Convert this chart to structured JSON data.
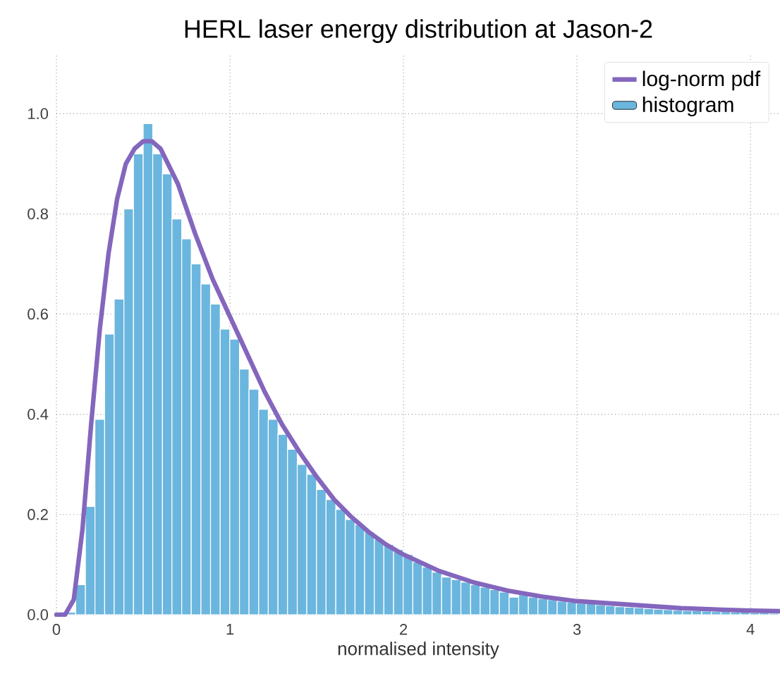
{
  "chart_data": {
    "type": "histogram",
    "title": "HERL laser energy distribution at Jason-2",
    "xlabel": "normalised intensity",
    "xlim": [
      0,
      4.17
    ],
    "ylim": [
      0,
      1.12
    ],
    "xticks": [
      0,
      1,
      2,
      3,
      4
    ],
    "yticks": [
      {
        "value": 0,
        "label": "0.0"
      },
      {
        "value": 0.2,
        "label": "0.2"
      },
      {
        "value": 0.4,
        "label": "0.4"
      },
      {
        "value": 0.6,
        "label": "0.6"
      },
      {
        "value": 0.8,
        "label": "0.8"
      },
      {
        "value": 1.0,
        "label": "1.0"
      }
    ],
    "grid": true,
    "legend": "top right",
    "series": [
      {
        "type": "line",
        "name": "log-norm pdf",
        "color": "#8466bd",
        "x": [
          0,
          0.05,
          0.1,
          0.15,
          0.2,
          0.25,
          0.3,
          0.35,
          0.4,
          0.45,
          0.5,
          0.55,
          0.6,
          0.7,
          0.8,
          0.9,
          1.0,
          1.1,
          1.2,
          1.3,
          1.4,
          1.5,
          1.6,
          1.7,
          1.8,
          1.9,
          2.0,
          2.2,
          2.4,
          2.6,
          2.8,
          3.0,
          3.3,
          3.6,
          4.0,
          4.17
        ],
        "values": [
          0,
          0,
          0.03,
          0.17,
          0.38,
          0.57,
          0.72,
          0.83,
          0.9,
          0.93,
          0.945,
          0.945,
          0.93,
          0.86,
          0.76,
          0.67,
          0.595,
          0.52,
          0.445,
          0.38,
          0.325,
          0.275,
          0.23,
          0.195,
          0.165,
          0.14,
          0.12,
          0.088,
          0.065,
          0.048,
          0.036,
          0.027,
          0.02,
          0.013,
          0.008,
          0.007
        ]
      },
      {
        "name": "histogram",
        "color": "#6bb6de",
        "bins": [
          0,
          0.056,
          0.111,
          0.167,
          0.222,
          0.278,
          0.333,
          0.389,
          0.444,
          0.5,
          0.555,
          0.611,
          0.666,
          0.722,
          0.777,
          0.833,
          0.888,
          0.944,
          0.999,
          1.055,
          1.11,
          1.166,
          1.221,
          1.277,
          1.332,
          1.388,
          1.443,
          1.499,
          1.554,
          1.61,
          1.665,
          1.721,
          1.776,
          1.832,
          1.887,
          1.943,
          1.998,
          2.054,
          2.109,
          2.165,
          2.22,
          2.276,
          2.331,
          2.387,
          2.442,
          2.498,
          2.553,
          2.609,
          2.664,
          2.72,
          2.775,
          2.831,
          2.886,
          2.942,
          2.997,
          3.053,
          3.108,
          3.164,
          3.219,
          3.275,
          3.33,
          3.386,
          3.441,
          3.497,
          3.552,
          3.608,
          3.663,
          3.719,
          3.774,
          3.83,
          3.885,
          3.941,
          3.996,
          4.052,
          4.107,
          4.163
        ],
        "values": [
          0,
          0.005,
          0.06,
          0.216,
          0.39,
          0.56,
          0.63,
          0.81,
          0.92,
          0.98,
          0.92,
          0.88,
          0.79,
          0.75,
          0.7,
          0.66,
          0.62,
          0.57,
          0.55,
          0.49,
          0.45,
          0.41,
          0.39,
          0.36,
          0.33,
          0.3,
          0.28,
          0.25,
          0.23,
          0.21,
          0.19,
          0.18,
          0.165,
          0.15,
          0.14,
          0.13,
          0.12,
          0.105,
          0.095,
          0.085,
          0.075,
          0.07,
          0.065,
          0.06,
          0.055,
          0.05,
          0.045,
          0.035,
          0.04,
          0.035,
          0.032,
          0.03,
          0.027,
          0.025,
          0.023,
          0.024,
          0.02,
          0.018,
          0.016,
          0.015,
          0.014,
          0.012,
          0.011,
          0.01,
          0.009,
          0.008,
          0.008,
          0.007,
          0.006,
          0.006,
          0.005,
          0.005,
          0.004,
          0.004,
          0.003
        ]
      }
    ]
  }
}
